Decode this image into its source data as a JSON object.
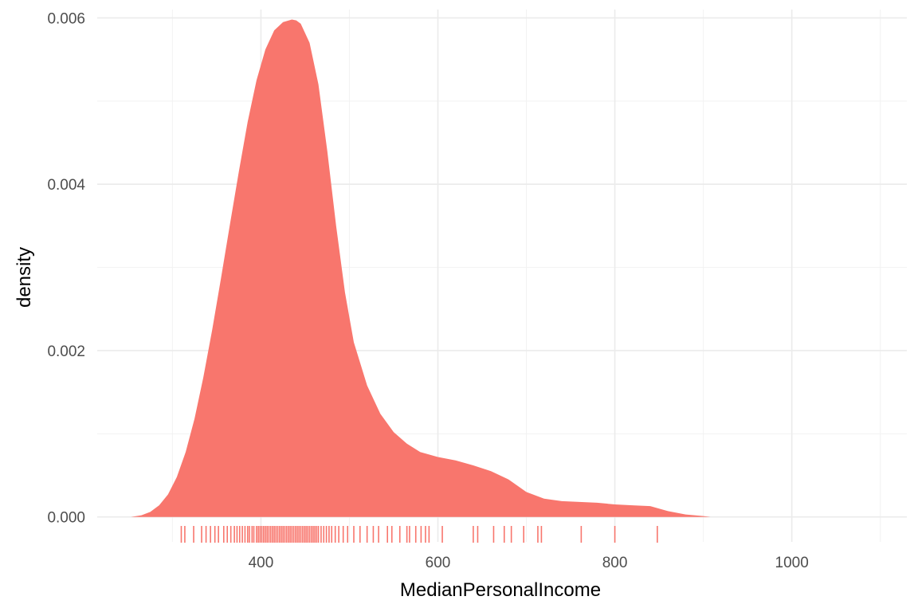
{
  "chart_data": {
    "type": "area",
    "title": "",
    "xlabel": "MedianPersonalIncome",
    "ylabel": "density",
    "xlim": [
      215,
      1130
    ],
    "ylim": [
      -0.0003,
      0.0061
    ],
    "x_ticks": [
      400,
      600,
      800,
      1000
    ],
    "x_tick_labels": [
      "400",
      "600",
      "800",
      "1000"
    ],
    "x_minor_ticks": [
      300,
      500,
      700,
      900,
      1100
    ],
    "y_ticks": [
      0,
      0.002,
      0.004,
      0.006
    ],
    "y_tick_labels": [
      "0.000",
      "0.002",
      "0.004",
      "0.006"
    ],
    "y_minor_ticks": [
      0.001,
      0.003,
      0.005
    ],
    "grid": true,
    "fill_color": "#F8766D",
    "density_curve": {
      "x": [
        253,
        265,
        275,
        285,
        295,
        305,
        315,
        325,
        335,
        345,
        355,
        365,
        375,
        385,
        395,
        405,
        415,
        425,
        435,
        440,
        445,
        455,
        465,
        475,
        485,
        495,
        505,
        520,
        535,
        550,
        565,
        580,
        600,
        620,
        640,
        660,
        680,
        700,
        720,
        740,
        760,
        780,
        800,
        820,
        840,
        860,
        880,
        900,
        908
      ],
      "y": [
        0.0,
        2e-05,
        6e-05,
        0.00014,
        0.00027,
        0.00048,
        0.00078,
        0.00118,
        0.00168,
        0.00225,
        0.00288,
        0.00352,
        0.00415,
        0.00475,
        0.00525,
        0.00562,
        0.00585,
        0.00595,
        0.00598,
        0.00597,
        0.00593,
        0.0057,
        0.0052,
        0.0044,
        0.0035,
        0.0027,
        0.0021,
        0.00158,
        0.00124,
        0.00102,
        0.00088,
        0.00078,
        0.00072,
        0.00068,
        0.00062,
        0.00055,
        0.00045,
        0.0003,
        0.00022,
        0.00019,
        0.00018,
        0.00017,
        0.00015,
        0.00014,
        0.00013,
        7e-05,
        3e-05,
        1e-05,
        0.0
      ]
    },
    "rug_x": [
      310,
      314,
      324,
      333,
      338,
      343,
      348,
      352,
      358,
      362,
      366,
      370,
      373,
      376,
      379,
      382,
      385,
      387,
      390,
      392,
      395,
      397,
      399,
      401,
      403,
      405,
      407,
      409,
      411,
      413,
      415,
      417,
      419,
      421,
      423,
      425,
      427,
      429,
      431,
      433,
      435,
      437,
      439,
      441,
      443,
      445,
      447,
      449,
      451,
      453,
      455,
      457,
      459,
      461,
      463,
      465,
      468,
      471,
      474,
      477,
      480,
      484,
      488,
      493,
      498,
      505,
      512,
      520,
      527,
      533,
      543,
      548,
      557,
      565,
      568,
      575,
      581,
      586,
      590,
      605,
      640,
      645,
      663,
      675,
      683,
      697,
      713,
      717,
      762,
      800,
      848
    ]
  }
}
